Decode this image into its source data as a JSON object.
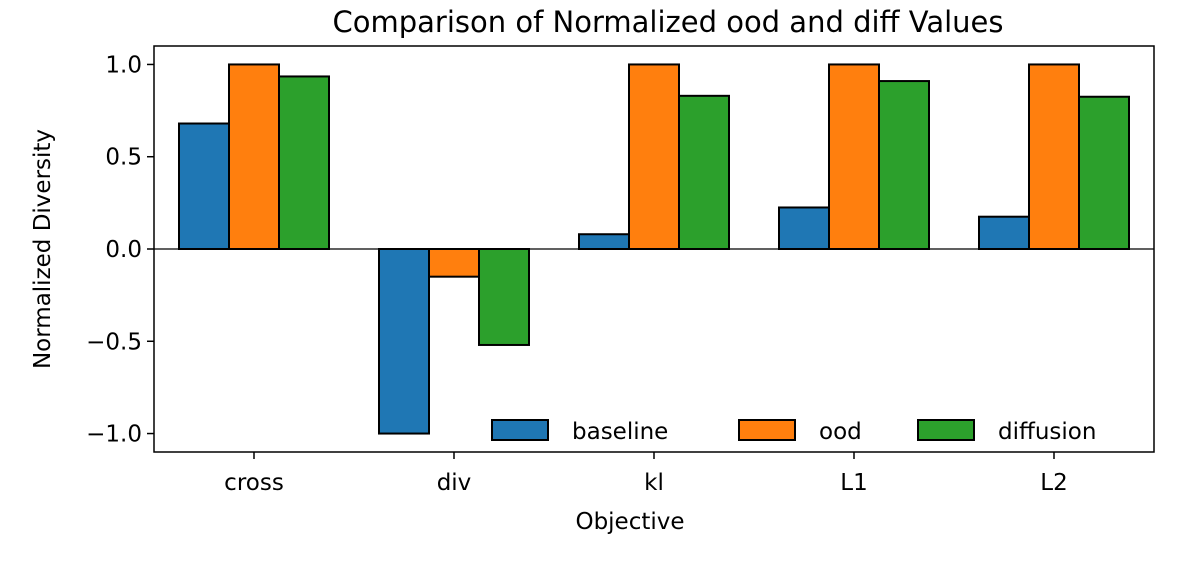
{
  "chart_data": {
    "type": "bar",
    "title": "Comparison of Normalized ood and diff Values",
    "xlabel": "Objective",
    "ylabel": "Normalized Diversity",
    "categories": [
      "cross",
      "div",
      "kl",
      "L1",
      "L2"
    ],
    "series": [
      {
        "name": "baseline",
        "color": "#1f77b4",
        "values": [
          0.68,
          -1.0,
          0.08,
          0.225,
          0.175
        ]
      },
      {
        "name": "ood",
        "color": "#ff7f0e",
        "values": [
          1.0,
          -0.15,
          1.0,
          1.0,
          1.0
        ]
      },
      {
        "name": "diffusion",
        "color": "#2ca02c",
        "values": [
          0.935,
          -0.52,
          0.83,
          0.91,
          0.825
        ]
      }
    ],
    "ylim": [
      -1.1,
      1.1
    ],
    "yticks": [
      -1.0,
      -0.5,
      0.0,
      0.5,
      1.0
    ],
    "ytick_labels": [
      "−1.0",
      "−0.5",
      "0.0",
      "0.5",
      "1.0"
    ],
    "legend_position": "lower-right",
    "grid": false
  }
}
